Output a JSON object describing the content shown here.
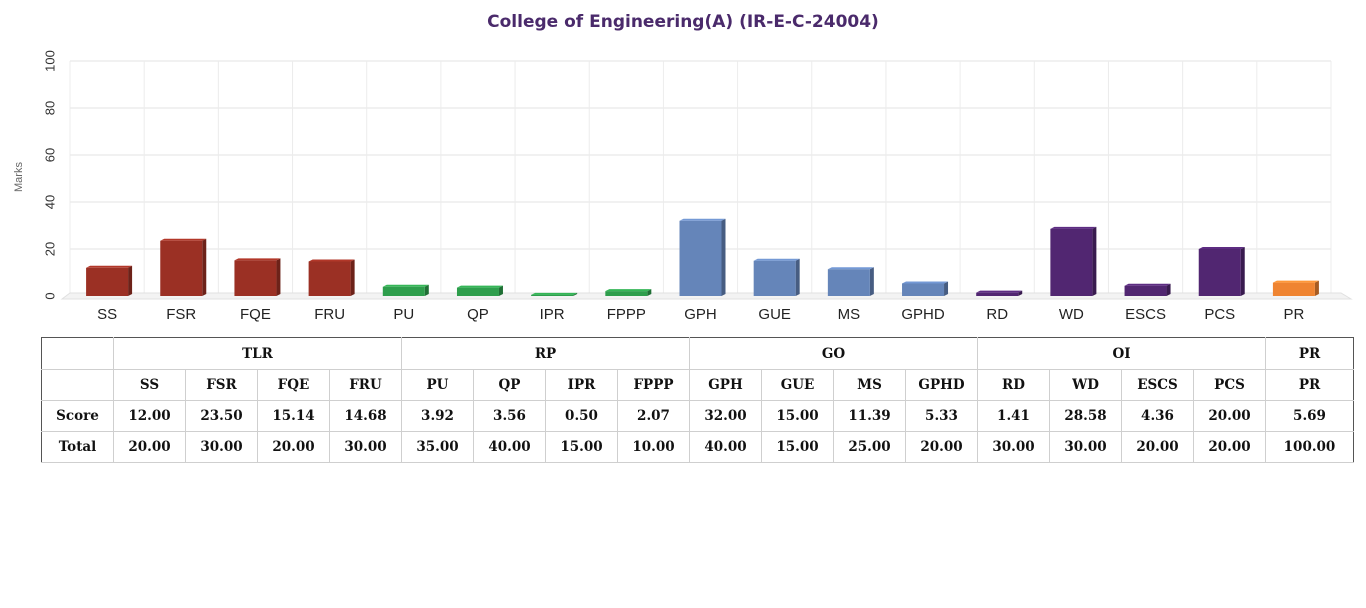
{
  "title": "College of Engineering(A) (IR-E-C-24004)",
  "chart_data": {
    "type": "bar",
    "title": "College of Engineering(A) (IR-E-C-24004)",
    "xlabel": "",
    "ylabel": "Marks",
    "ylim": [
      0,
      100
    ],
    "yticks": [
      "0",
      "20",
      "40",
      "60",
      "80",
      "100"
    ],
    "grid": true,
    "categories": [
      "SS",
      "FSR",
      "FQE",
      "FRU",
      "PU",
      "QP",
      "IPR",
      "FPPP",
      "GPH",
      "GUE",
      "MS",
      "GPHD",
      "RD",
      "WD",
      "ESCS",
      "PCS",
      "PR"
    ],
    "values": [
      12.0,
      23.5,
      15.14,
      14.68,
      3.92,
      3.56,
      0.5,
      2.07,
      32.0,
      15.0,
      11.39,
      5.33,
      1.41,
      28.58,
      4.36,
      20.0,
      5.69
    ],
    "groups": [
      "TLR",
      "TLR",
      "TLR",
      "TLR",
      "RP",
      "RP",
      "RP",
      "RP",
      "GO",
      "GO",
      "GO",
      "GO",
      "OI",
      "OI",
      "OI",
      "OI",
      "PR"
    ],
    "group_colors": {
      "TLR": "#9b3024",
      "RP": "#2e9e4c",
      "GO": "#6585b9",
      "OI": "#512671",
      "PR": "#ef8431"
    }
  },
  "table": {
    "groups": [
      {
        "label": "TLR",
        "span": 4
      },
      {
        "label": "RP",
        "span": 4
      },
      {
        "label": "GO",
        "span": 4
      },
      {
        "label": "OI",
        "span": 4
      },
      {
        "label": "PR",
        "span": 1
      }
    ],
    "columns": [
      "SS",
      "FSR",
      "FQE",
      "FRU",
      "PU",
      "QP",
      "IPR",
      "FPPP",
      "GPH",
      "GUE",
      "MS",
      "GPHD",
      "RD",
      "WD",
      "ESCS",
      "PCS",
      "PR"
    ],
    "rows": [
      {
        "label": "Score",
        "values": [
          "12.00",
          "23.50",
          "15.14",
          "14.68",
          "3.92",
          "3.56",
          "0.50",
          "2.07",
          "32.00",
          "15.00",
          "11.39",
          "5.33",
          "1.41",
          "28.58",
          "4.36",
          "20.00",
          "5.69"
        ]
      },
      {
        "label": "Total",
        "values": [
          "20.00",
          "30.00",
          "20.00",
          "30.00",
          "35.00",
          "40.00",
          "15.00",
          "10.00",
          "40.00",
          "15.00",
          "25.00",
          "20.00",
          "30.00",
          "30.00",
          "20.00",
          "20.00",
          "100.00"
        ]
      }
    ]
  }
}
